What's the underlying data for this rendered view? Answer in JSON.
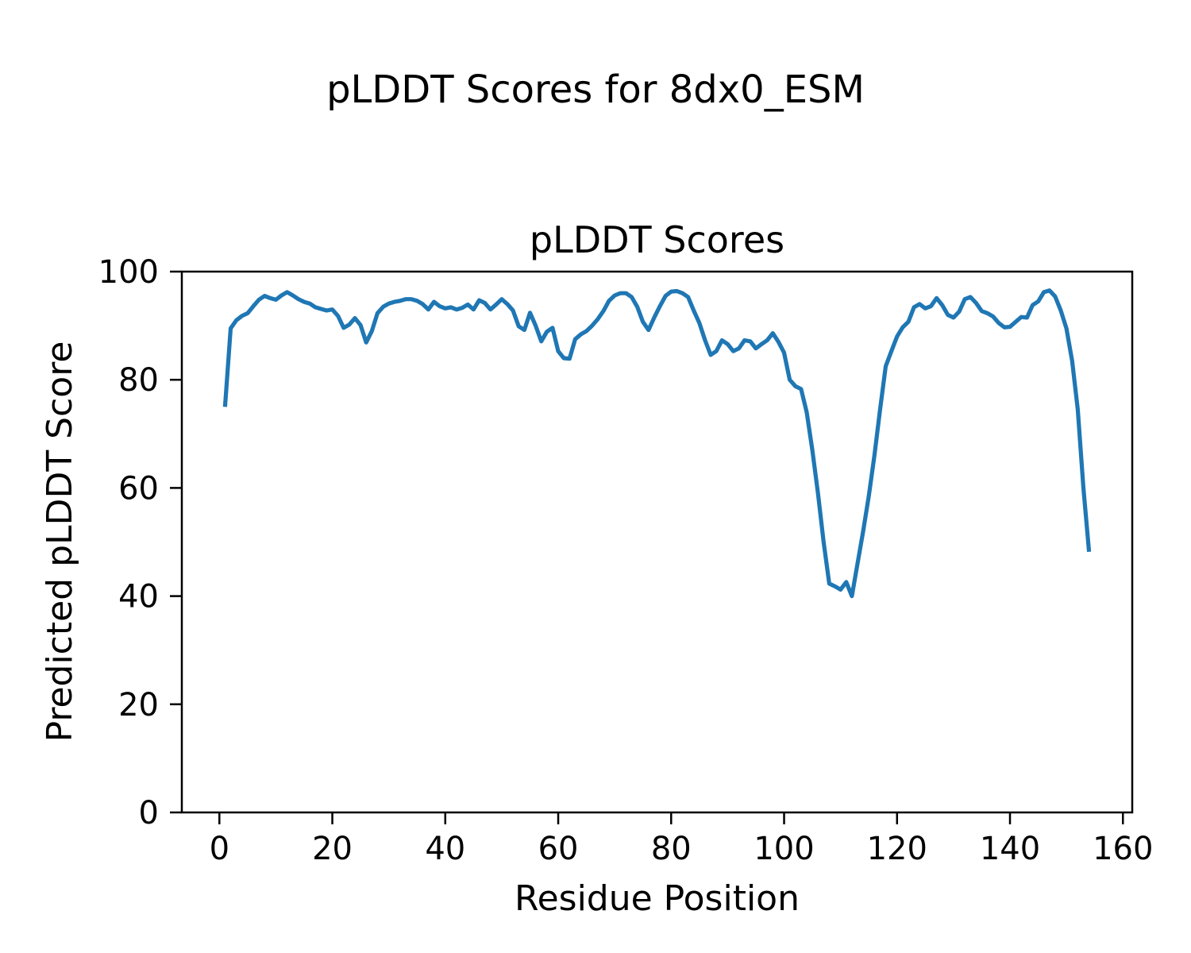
{
  "figure": {
    "suptitle": "pLDDT Scores for 8dx0_ESM",
    "axes_title": "pLDDT Scores",
    "xlabel": "Residue Position",
    "ylabel": "Predicted pLDDT Score",
    "background_color": "#ffffff",
    "text_color": "#000000",
    "spine_color": "#000000"
  },
  "chart_data": {
    "type": "line",
    "title": "pLDDT Scores",
    "xlabel": "Residue Position",
    "ylabel": "Predicted pLDDT Score",
    "line_color": "#1f77b4",
    "grid": false,
    "legend_position": "none",
    "x_start": 1,
    "x_step": 1,
    "xlim": [
      -6.65,
      161.65
    ],
    "ylim": [
      0,
      100
    ],
    "xticks": [
      0,
      20,
      40,
      60,
      80,
      100,
      120,
      140,
      160
    ],
    "yticks": [
      0,
      20,
      40,
      60,
      80,
      100
    ],
    "values": [
      75.0,
      89.5,
      91.0,
      91.8,
      92.3,
      93.6,
      94.8,
      95.5,
      95.1,
      94.8,
      95.6,
      96.2,
      95.6,
      94.9,
      94.4,
      94.1,
      93.4,
      93.1,
      92.8,
      93.0,
      91.8,
      89.6,
      90.2,
      91.4,
      90.1,
      86.9,
      89.0,
      92.3,
      93.5,
      94.1,
      94.4,
      94.6,
      94.9,
      94.9,
      94.6,
      94.0,
      93.0,
      94.4,
      93.6,
      93.2,
      93.4,
      93.0,
      93.3,
      93.9,
      93.0,
      94.7,
      94.2,
      93.0,
      93.9,
      94.9,
      94.0,
      92.8,
      89.9,
      89.2,
      92.4,
      90.0,
      87.1,
      88.9,
      89.6,
      85.3,
      84.0,
      83.9,
      87.5,
      88.4,
      89.0,
      90.0,
      91.2,
      92.7,
      94.6,
      95.6,
      96.0,
      96.0,
      95.3,
      93.5,
      90.7,
      89.2,
      91.5,
      93.6,
      95.5,
      96.3,
      96.4,
      96.0,
      95.3,
      92.8,
      90.5,
      87.3,
      84.6,
      85.3,
      87.3,
      86.6,
      85.3,
      85.8,
      87.3,
      87.1,
      85.8,
      86.6,
      87.3,
      88.6,
      87.0,
      85.0,
      80.0,
      78.8,
      78.3,
      74.0,
      67.0,
      59.0,
      50.0,
      42.3,
      41.8,
      41.2,
      42.6,
      40.0,
      46.0,
      52.0,
      58.5,
      66.0,
      74.5,
      82.5,
      85.3,
      88.0,
      89.7,
      90.7,
      93.4,
      94.0,
      93.2,
      93.6,
      95.1,
      93.8,
      92.0,
      91.5,
      92.6,
      94.9,
      95.3,
      94.2,
      92.7,
      92.3,
      91.7,
      90.5,
      89.7,
      89.8,
      90.7,
      91.6,
      91.5,
      93.8,
      94.5,
      96.2,
      96.5,
      95.4,
      92.8,
      89.5,
      83.5,
      74.5,
      60.0,
      48.2
    ]
  }
}
